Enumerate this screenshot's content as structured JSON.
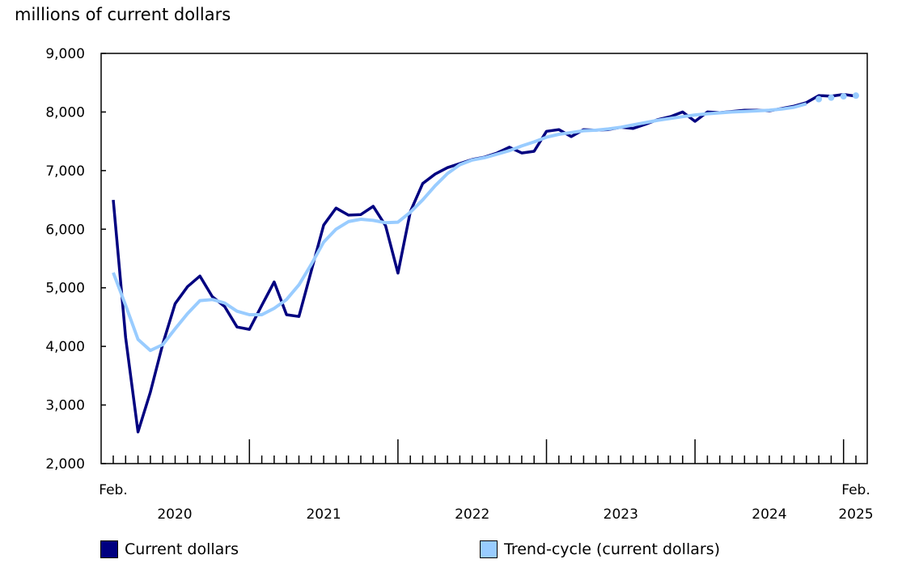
{
  "chart_data": {
    "type": "line",
    "ylabel": "millions of current dollars",
    "ylim": [
      2000,
      9000
    ],
    "yticks": [
      2000,
      3000,
      4000,
      5000,
      6000,
      7000,
      8000,
      9000
    ],
    "ytick_labels": [
      "2,000",
      "3,000",
      "4,000",
      "5,000",
      "6,000",
      "7,000",
      "8,000",
      "9,000"
    ],
    "x_start": "2020-02",
    "x_end": "2025-02",
    "x_labels": {
      "start_month": "Feb.",
      "end_month": "Feb.",
      "years": [
        "2020",
        "2021",
        "2022",
        "2023",
        "2024",
        "2025"
      ]
    },
    "grid": false,
    "legend_position": "bottom",
    "series": [
      {
        "name": "Current dollars",
        "color": "#000080",
        "style": "line",
        "values": [
          6500,
          4150,
          2540,
          3220,
          4040,
          4730,
          5020,
          5200,
          4850,
          4680,
          4330,
          4290,
          4700,
          5100,
          4540,
          4510,
          5290,
          6070,
          6360,
          6240,
          6250,
          6390,
          6060,
          5250,
          6300,
          6780,
          6940,
          7050,
          7120,
          7190,
          7230,
          7300,
          7400,
          7300,
          7330,
          7670,
          7700,
          7580,
          7700,
          7690,
          7700,
          7740,
          7720,
          7790,
          7870,
          7920,
          8000,
          7840,
          8000,
          7990,
          8010,
          8030,
          8030,
          8020,
          8060,
          8100,
          8160,
          8280,
          8270,
          8300,
          8270
        ]
      },
      {
        "name": "Trend-cycle (current dollars)",
        "color": "#99CCFF",
        "style": "line-then-dots",
        "dots_from_index": 57,
        "values": [
          5260,
          4700,
          4120,
          3930,
          4030,
          4300,
          4560,
          4780,
          4800,
          4740,
          4600,
          4540,
          4540,
          4650,
          4800,
          5050,
          5400,
          5780,
          6000,
          6130,
          6170,
          6150,
          6110,
          6120,
          6290,
          6500,
          6740,
          6950,
          7100,
          7180,
          7220,
          7280,
          7340,
          7420,
          7490,
          7570,
          7620,
          7650,
          7680,
          7690,
          7710,
          7740,
          7780,
          7820,
          7860,
          7890,
          7920,
          7950,
          7970,
          7985,
          8000,
          8010,
          8020,
          8030,
          8050,
          8080,
          8140,
          8220,
          8245,
          8268,
          8280
        ]
      }
    ]
  }
}
